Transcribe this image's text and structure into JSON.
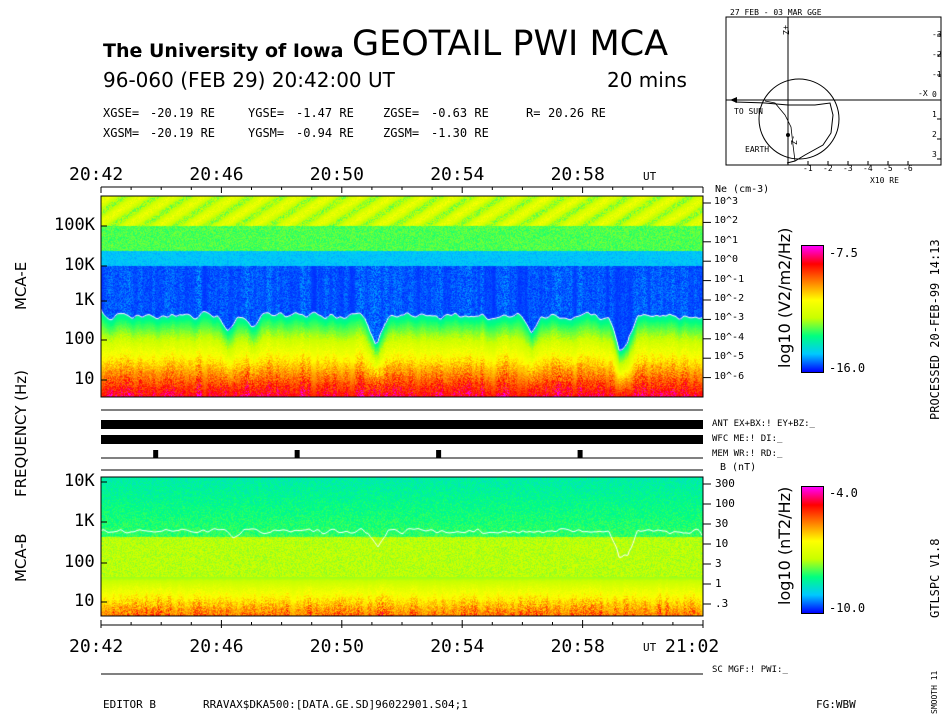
{
  "header": {
    "institution": "The University of Iowa",
    "title": "GEOTAIL PWI MCA",
    "date_line": "96-060 (FEB 29) 20:42:00 UT",
    "duration": "20 mins"
  },
  "position": {
    "gse": {
      "x_label": "XGSE=",
      "x_value": "-20.19 RE",
      "y_label": "YGSE=",
      "y_value": "-1.47 RE",
      "z_label": "ZGSE=",
      "z_value": "-0.63 RE",
      "r_label": "R=",
      "r_value": "20.26 RE"
    },
    "gsm": {
      "x_label": "XGSM=",
      "x_value": "-20.19 RE",
      "y_label": "YGSM=",
      "y_value": "-0.94 RE",
      "z_label": "ZGSM=",
      "z_value": "-1.30 RE"
    }
  },
  "orbit": {
    "title": "27 FEB - 03 MAR GGE",
    "to_sun": "TO SUN",
    "earth": "EARTH",
    "units": "X10 RE",
    "x_label": "-X",
    "z_label_top": "+Z",
    "z_label_bottom": "-Z",
    "x_ticks": [
      "-1",
      "-2",
      "-3",
      "-4",
      "-5",
      "-6"
    ],
    "y_ticks": [
      "-3",
      "-2",
      "-1",
      "0",
      "1",
      "2",
      "3"
    ]
  },
  "time_axis": {
    "top_ticks": [
      "20:42",
      "20:46",
      "20:50",
      "20:54",
      "20:58"
    ],
    "top_unit": "UT",
    "bottom_ticks": [
      "20:42",
      "20:46",
      "20:50",
      "20:54",
      "20:58"
    ],
    "bottom_unit": "UT",
    "bottom_end": "21:02"
  },
  "labels": {
    "frequency": "FREQUENCY (Hz)",
    "mca_e": "MCA-E",
    "mca_b": "MCA-B",
    "processed": "PROCESSED 20-FEB-99 14:13",
    "version": "GTLSPC V1.8",
    "smooth": "SMOOTH 11"
  },
  "status": {
    "ant": "ANT EX+BX:! EY+BZ:_",
    "wfc": "WFC ME:! DI:_",
    "mem": "MEM WR:! RD:_",
    "sc": "SC MGF:! PWI:_"
  },
  "footer": {
    "editor": "EDITOR B",
    "file": "RRAVAX$DKA500:[DATA.GE.SD]96022901.S04;1",
    "fg": "FG:WBW"
  },
  "chart_data": [
    {
      "type": "heatmap",
      "name": "MCA-E electric spectrogram",
      "x_range": [
        "20:42",
        "21:02"
      ],
      "y_scale": "log",
      "y_ticks": [
        "100K",
        "10K",
        "1K",
        "100",
        "10"
      ],
      "ylabel": "FREQUENCY (Hz)",
      "right_axis_title": "Ne (cm-3)",
      "right_axis_ticks": [
        "10^3",
        "10^2",
        "10^1",
        "10^0",
        "10^-1",
        "10^-2",
        "10^-3",
        "10^-4",
        "10^-5",
        "10^-6"
      ],
      "colorbar_label": "log10 (V2/m2/Hz)",
      "colorbar_range": [
        -16.0,
        -7.5
      ],
      "colorbar_max_label": "-7.5",
      "colorbar_min_label": "-16.0"
    },
    {
      "type": "heatmap",
      "name": "MCA-B magnetic spectrogram",
      "x_range": [
        "20:42",
        "21:02"
      ],
      "y_scale": "log",
      "y_ticks": [
        "10K",
        "1K",
        "100",
        "10"
      ],
      "right_axis_title": "B (nT)",
      "right_axis_ticks": [
        "300",
        "100",
        "30",
        "10",
        "3",
        "1",
        ".3"
      ],
      "colorbar_label": "log10 (nT2/Hz)",
      "colorbar_range": [
        -10.0,
        -4.0
      ],
      "colorbar_max_label": "-4.0",
      "colorbar_min_label": "-10.0"
    }
  ],
  "colors": {
    "colorscale": [
      "#0000ff",
      "#00c8ff",
      "#00ff80",
      "#c8ff00",
      "#ffff00",
      "#ff8000",
      "#ff0000",
      "#ff00ff"
    ]
  }
}
